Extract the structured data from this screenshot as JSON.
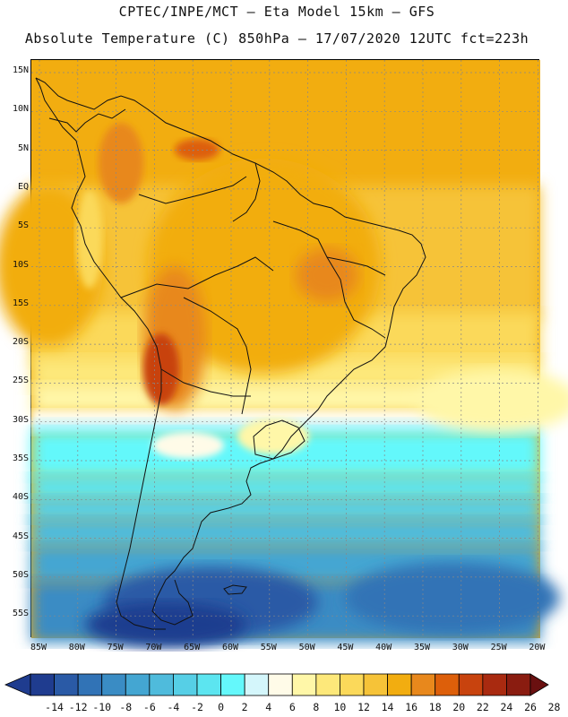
{
  "header": {
    "line1": "CPTEC/INPE/MCT –  Eta Model 15km – GFS",
    "line2": "Absolute Temperature (C) 850hPa – 17/07/2020 12UTC fct=223h"
  },
  "axes": {
    "lat_labels": [
      "15N",
      "10N",
      "5N",
      "EQ",
      "5S",
      "10S",
      "15S",
      "20S",
      "25S",
      "30S",
      "35S",
      "40S",
      "45S",
      "50S",
      "55S"
    ],
    "lon_labels": [
      "85W",
      "80W",
      "75W",
      "70W",
      "65W",
      "60W",
      "55W",
      "50W",
      "45W",
      "40W",
      "35W",
      "30W",
      "25W",
      "20W"
    ]
  },
  "legend": {
    "labels": [
      "-14",
      "-12",
      "-10",
      "-8",
      "-6",
      "-4",
      "-2",
      "0",
      "2",
      "4",
      "6",
      "8",
      "10",
      "12",
      "14",
      "16",
      "18",
      "20",
      "22",
      "24",
      "26",
      "28"
    ],
    "colors": [
      "#1f3c8f",
      "#2a5aa6",
      "#3173b6",
      "#3a8cc4",
      "#44a6d2",
      "#4fbbdc",
      "#56cfe6",
      "#5ce5f0",
      "#64f8fb",
      "#d4f6fb",
      "#fffbe8",
      "#fff7a8",
      "#fde87a",
      "#fbd95a",
      "#f6c338",
      "#f2ad10",
      "#e8881c",
      "#dd5f0a",
      "#c8430e",
      "#a92a10",
      "#8a1c10",
      "#6a1010"
    ]
  }
}
